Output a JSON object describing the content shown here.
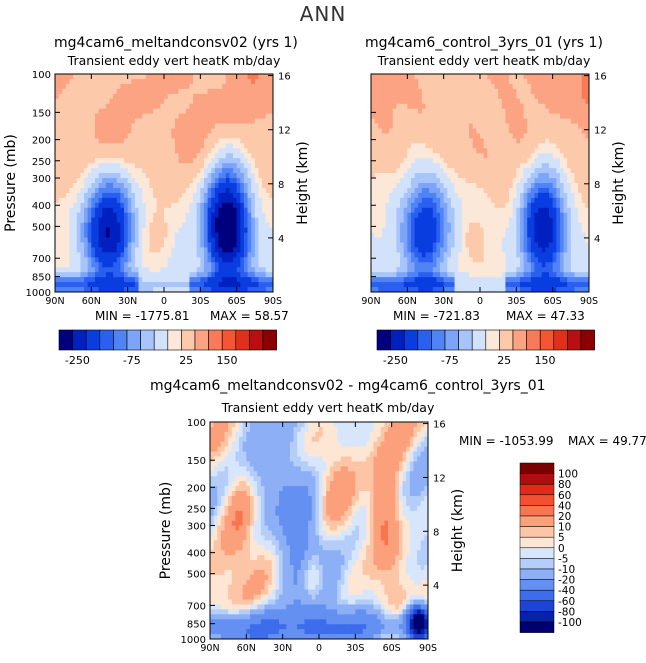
{
  "figure": {
    "title": "ANN"
  },
  "chart_data": [
    {
      "type": "heatmap",
      "title": "mg4cam6_meltandconsv02 (yrs 1)",
      "subtitle": "Transient eddy vert heatK mb/day",
      "xlabel": "",
      "ylabel": "Pressure (mb)",
      "ylabel_right": "Height (km)",
      "x_ticks": [
        "90N",
        "60N",
        "30N",
        "0",
        "30S",
        "60S",
        "90S"
      ],
      "y_ticks": [
        "100",
        "150",
        "200",
        "250",
        "300",
        "400",
        "500",
        "700",
        "850",
        "1000"
      ],
      "y_right_ticks": [
        "16",
        "12",
        "8",
        "4"
      ],
      "min_label": "MIN = -1775.81",
      "max_label": "MAX = 58.57",
      "colorbar_labels": [
        "-250",
        "-75",
        "25",
        "150"
      ],
      "contour_levels": [
        -250,
        -200,
        -150,
        -125,
        -100,
        -75,
        -50,
        -25,
        -10,
        10,
        25,
        50,
        75,
        100,
        125,
        150,
        200,
        250
      ],
      "features": [
        {
          "lat": 45,
          "p": 650,
          "value": -300
        },
        {
          "lat": -55,
          "p": 600,
          "value": -400
        },
        {
          "lat": -85,
          "p": 900,
          "value": -1775.81
        },
        {
          "lat": 10,
          "p": 600,
          "value": 10
        }
      ]
    },
    {
      "type": "heatmap",
      "title": "mg4cam6_control_3yrs_01 (yrs 1)",
      "subtitle": "Transient eddy vert heatK mb/day",
      "ylabel_right": "Height (km)",
      "x_ticks": [
        "90N",
        "60N",
        "30N",
        "0",
        "30S",
        "60S",
        "90S"
      ],
      "min_label": "MIN = -721.83",
      "max_label": "MAX = 47.33",
      "colorbar_labels": [
        "-250",
        "-75",
        "25",
        "150"
      ],
      "contour_levels": [
        -250,
        -200,
        -150,
        -125,
        -100,
        -75,
        -50,
        -25,
        -10,
        10,
        25,
        50,
        75,
        100,
        125,
        150,
        200,
        250
      ],
      "features": [
        {
          "lat": 45,
          "p": 650,
          "value": -200
        },
        {
          "lat": -55,
          "p": 600,
          "value": -300
        },
        {
          "lat": -85,
          "p": 900,
          "value": -721.83
        }
      ]
    },
    {
      "type": "heatmap",
      "title": "mg4cam6_meltandconsv02 - mg4cam6_control_3yrs_01",
      "subtitle": "Transient eddy vert heatK mb/day",
      "ylabel": "Pressure (mb)",
      "ylabel_right": "Height (km)",
      "x_ticks": [
        "90N",
        "60N",
        "30N",
        "0",
        "30S",
        "60S",
        "90S"
      ],
      "y_ticks": [
        "100",
        "150",
        "200",
        "250",
        "300",
        "400",
        "500",
        "700",
        "850",
        "1000"
      ],
      "y_right_ticks": [
        "16",
        "12",
        "8",
        "4"
      ],
      "min_label": "MIN = -1053.99",
      "max_label": "MAX = 49.77",
      "colorbar_labels": [
        "100",
        "80",
        "60",
        "40",
        "20",
        "10",
        "5",
        "0",
        "-5",
        "-10",
        "-20",
        "-40",
        "-60",
        "-80",
        "-100"
      ],
      "contour_levels": [
        -100,
        -80,
        -60,
        -40,
        -20,
        -10,
        -5,
        0,
        5,
        10,
        20,
        40,
        60,
        80,
        100
      ],
      "features": [
        {
          "lat": 5,
          "p": 500,
          "value": 40
        },
        {
          "lat": -55,
          "p": 300,
          "value": 40
        },
        {
          "lat": -85,
          "p": 900,
          "value": -1053.99
        }
      ]
    }
  ],
  "colors": {
    "diverging": [
      "#00007f",
      "#0020c0",
      "#0a3de0",
      "#2a5ff0",
      "#4f83f6",
      "#7ca4f8",
      "#a7c4fb",
      "#d2e2fb",
      "#fce8d8",
      "#fcc9aa",
      "#fba382",
      "#f97a58",
      "#f45533",
      "#e0301c",
      "#b81010",
      "#8b0000"
    ],
    "diff_scale": [
      "#7a0000",
      "#b00e0e",
      "#e02a1c",
      "#f44f2f",
      "#f8764f",
      "#fba07a",
      "#fcc5a5",
      "#fde6d3",
      "#d8e6fb",
      "#b4cdf9",
      "#8caff6",
      "#6490f2",
      "#3d6cec",
      "#1c44d6",
      "#0522a8",
      "#000070"
    ]
  }
}
